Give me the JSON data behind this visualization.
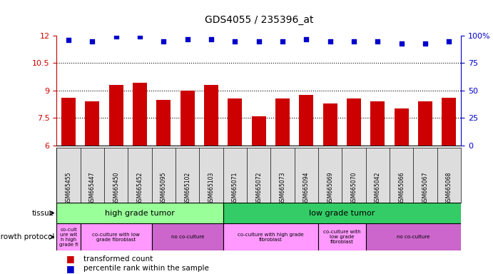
{
  "title": "GDS4055 / 235396_at",
  "samples": [
    "GSM665455",
    "GSM665447",
    "GSM665450",
    "GSM665452",
    "GSM665095",
    "GSM665102",
    "GSM665103",
    "GSM665071",
    "GSM665072",
    "GSM665073",
    "GSM665094",
    "GSM665069",
    "GSM665070",
    "GSM665042",
    "GSM665066",
    "GSM665067",
    "GSM665068"
  ],
  "bar_values": [
    8.6,
    8.4,
    9.3,
    9.4,
    8.5,
    9.0,
    9.3,
    8.55,
    7.6,
    8.55,
    8.75,
    8.3,
    8.55,
    8.4,
    8.0,
    8.4,
    8.6
  ],
  "dot_values": [
    96,
    95,
    99,
    99,
    95,
    97,
    97,
    95,
    95,
    95,
    97,
    95,
    95,
    95,
    93,
    93,
    95
  ],
  "bar_color": "#cc0000",
  "dot_color": "#0000cc",
  "ylim_left": [
    6,
    12
  ],
  "ylim_right": [
    0,
    100
  ],
  "yticks_left": [
    6,
    7.5,
    9,
    10.5,
    12
  ],
  "yticks_right": [
    0,
    25,
    50,
    75,
    100
  ],
  "ytick_labels_left": [
    "6",
    "7.5",
    "9",
    "10.5",
    "12"
  ],
  "ytick_labels_right": [
    "0",
    "25",
    "50",
    "75",
    "100%"
  ],
  "grid_values": [
    7.5,
    9.0,
    10.5
  ],
  "tissue_groups": [
    {
      "label": "high grade tumor",
      "start": 0,
      "end": 7,
      "color": "#99ff99"
    },
    {
      "label": "low grade tumor",
      "start": 7,
      "end": 17,
      "color": "#33cc66"
    }
  ],
  "growth_groups": [
    {
      "label": "co-cult\nure wit\nh high\ngrade fi",
      "start": 0,
      "end": 1,
      "color": "#ff99ff"
    },
    {
      "label": "co-culture with low\ngrade fibroblast",
      "start": 1,
      "end": 4,
      "color": "#ff99ff"
    },
    {
      "label": "no co-culture",
      "start": 4,
      "end": 7,
      "color": "#cc66cc"
    },
    {
      "label": "co-culture with high grade\nfibroblast",
      "start": 7,
      "end": 11,
      "color": "#ff99ff"
    },
    {
      "label": "co-culture with\nlow grade\nfibroblast",
      "start": 11,
      "end": 13,
      "color": "#ff99ff"
    },
    {
      "label": "no co-culture",
      "start": 13,
      "end": 17,
      "color": "#cc66cc"
    }
  ],
  "legend_items": [
    {
      "label": "transformed count",
      "color": "#cc0000"
    },
    {
      "label": "percentile rank within the sample",
      "color": "#0000cc"
    }
  ],
  "background_color": "#ffffff",
  "axis_color_left": "#cc0000",
  "axis_color_right": "#0000cc"
}
